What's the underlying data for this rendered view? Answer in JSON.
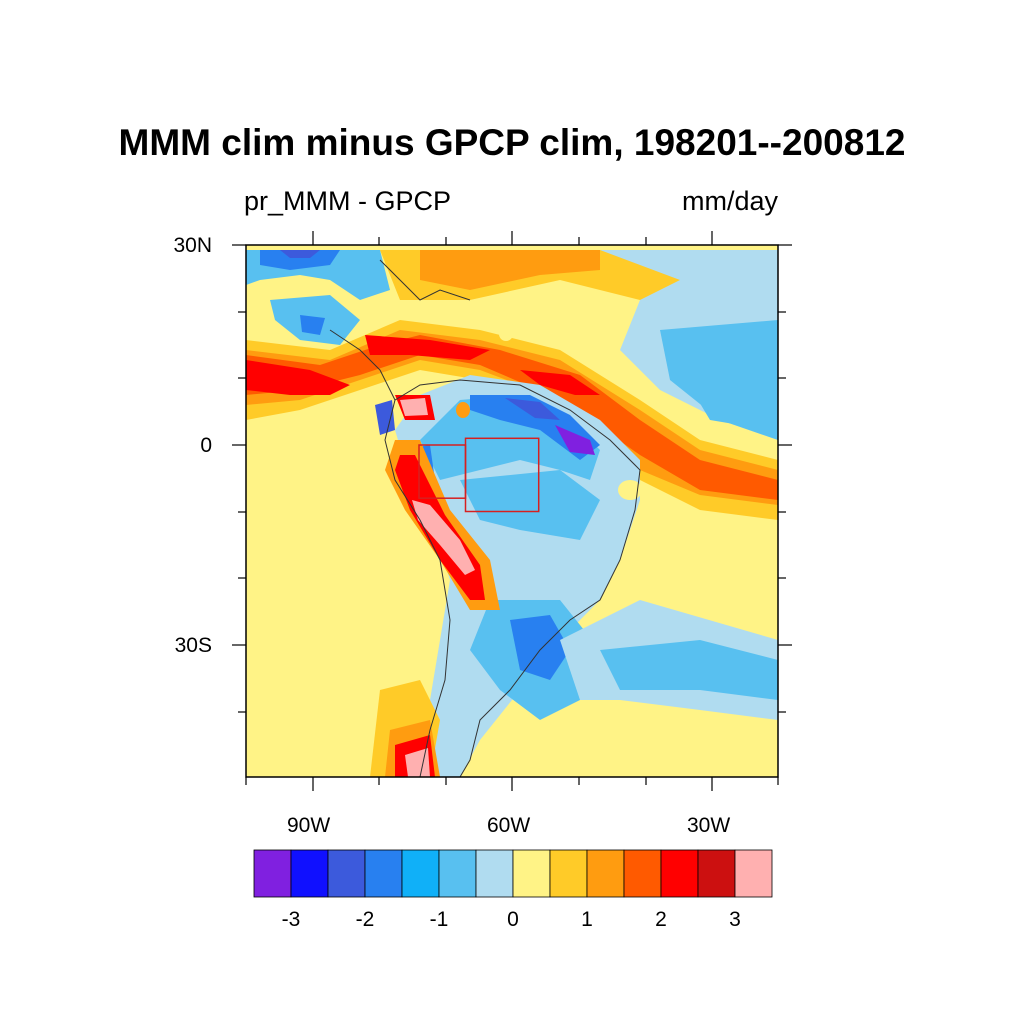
{
  "title": "MMM clim minus GPCP clim, 198201--200812",
  "left_subtitle": "pr_MMM - GPCP",
  "right_subtitle": "mm/day",
  "map": {
    "lat_range": [
      -50,
      30
    ],
    "lon_range": [
      -100,
      -20
    ],
    "lat_labels": [
      "30N",
      "0",
      "30S"
    ],
    "lon_labels": [
      "90W",
      "60W",
      "30W"
    ],
    "boxes": [
      {
        "lat_min": -8,
        "lat_max": 0,
        "lon_min": -74,
        "lon_max": -67
      },
      {
        "lat_min": -10,
        "lat_max": 1,
        "lon_min": -67,
        "lon_max": -56
      }
    ]
  },
  "colorbar": {
    "colors": [
      "#8020e0",
      "#1010ff",
      "#3c5adc",
      "#2880f0",
      "#10b0f8",
      "#58c0f0",
      "#b0dcf0",
      "#fff386",
      "#ffcb28",
      "#ff9c10",
      "#ff5a00",
      "#ff0000",
      "#cc1010",
      "#ffb0b0"
    ],
    "tick_labels": [
      "-3",
      "-2",
      "-1",
      "0",
      "1",
      "2",
      "3"
    ]
  }
}
